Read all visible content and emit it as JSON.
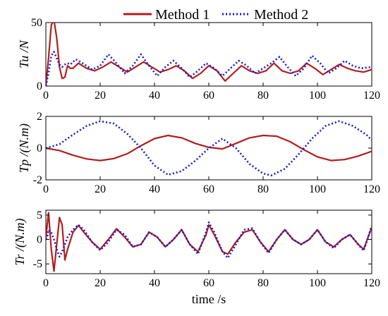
{
  "legend": {
    "entries": [
      "Method 1",
      "Method 2"
    ],
    "colors": [
      "#b01e1e",
      "#1a1ad6"
    ],
    "styles": [
      "solid",
      "dotted"
    ],
    "placement": "top-center"
  },
  "chart_data": [
    {
      "type": "line",
      "ylabel": "Tu /N",
      "xlabel": "",
      "xlim": [
        0,
        120
      ],
      "ylim": [
        0,
        50
      ],
      "xticks": [
        0,
        20,
        40,
        60,
        80,
        100,
        120
      ],
      "yticks": [
        0,
        50
      ],
      "grid": false,
      "series": [
        {
          "name": "Method 1",
          "points": [
            [
              0,
              0
            ],
            [
              1,
              22
            ],
            [
              2,
              48
            ],
            [
              3,
              52
            ],
            [
              4,
              38
            ],
            [
              5,
              15
            ],
            [
              6,
              6
            ],
            [
              7,
              7
            ],
            [
              8,
              16
            ],
            [
              9,
              14
            ],
            [
              10,
              14
            ],
            [
              12,
              18
            ],
            [
              15,
              14
            ],
            [
              18,
              12
            ],
            [
              21,
              15
            ],
            [
              24,
              19
            ],
            [
              27,
              15
            ],
            [
              30,
              11
            ],
            [
              33,
              15
            ],
            [
              36,
              19
            ],
            [
              39,
              15
            ],
            [
              42,
              11
            ],
            [
              45,
              13
            ],
            [
              48,
              16
            ],
            [
              51,
              12
            ],
            [
              54,
              6
            ],
            [
              57,
              10
            ],
            [
              60,
              16
            ],
            [
              63,
              12
            ],
            [
              66,
              4
            ],
            [
              69,
              10
            ],
            [
              72,
              16
            ],
            [
              75,
              12
            ],
            [
              78,
              10
            ],
            [
              81,
              12
            ],
            [
              84,
              18
            ],
            [
              87,
              12
            ],
            [
              90,
              10
            ],
            [
              93,
              12
            ],
            [
              96,
              18
            ],
            [
              99,
              14
            ],
            [
              102,
              9
            ],
            [
              105,
              13
            ],
            [
              108,
              17
            ],
            [
              111,
              14
            ],
            [
              114,
              12
            ],
            [
              117,
              11
            ],
            [
              120,
              13
            ]
          ]
        },
        {
          "name": "Method 2",
          "points": [
            [
              0,
              0
            ],
            [
              1,
              10
            ],
            [
              2,
              24
            ],
            [
              3,
              27
            ],
            [
              4,
              22
            ],
            [
              5,
              17
            ],
            [
              6,
              15
            ],
            [
              7,
              17
            ],
            [
              8,
              18
            ],
            [
              9,
              17
            ],
            [
              10,
              19
            ],
            [
              11,
              21
            ],
            [
              12,
              20
            ],
            [
              15,
              16
            ],
            [
              17,
              13
            ],
            [
              20,
              16
            ],
            [
              23,
              25
            ],
            [
              26,
              18
            ],
            [
              29,
              10
            ],
            [
              32,
              16
            ],
            [
              35,
              25
            ],
            [
              38,
              16
            ],
            [
              41,
              8
            ],
            [
              44,
              15
            ],
            [
              47,
              20
            ],
            [
              50,
              14
            ],
            [
              53,
              7
            ],
            [
              56,
              12
            ],
            [
              59,
              18
            ],
            [
              62,
              14
            ],
            [
              65,
              8
            ],
            [
              68,
              14
            ],
            [
              71,
              20
            ],
            [
              74,
              16
            ],
            [
              77,
              10
            ],
            [
              80,
              14
            ],
            [
              83,
              18
            ],
            [
              86,
              23
            ],
            [
              89,
              15
            ],
            [
              92,
              8
            ],
            [
              95,
              14
            ],
            [
              98,
              24
            ],
            [
              101,
              18
            ],
            [
              104,
              10
            ],
            [
              107,
              14
            ],
            [
              110,
              20
            ],
            [
              113,
              16
            ],
            [
              116,
              14
            ],
            [
              120,
              15
            ]
          ]
        }
      ]
    },
    {
      "type": "line",
      "ylabel": "Tp /(N.m)",
      "xlabel": "",
      "xlim": [
        0,
        120
      ],
      "ylim": [
        -2,
        2
      ],
      "xticks": [
        0,
        20,
        40,
        60,
        80,
        100,
        120
      ],
      "yticks": [
        -2,
        0,
        2
      ],
      "grid": false,
      "series": [
        {
          "name": "Method 1",
          "points": [
            [
              0,
              0
            ],
            [
              5,
              -0.15
            ],
            [
              10,
              -0.45
            ],
            [
              15,
              -0.68
            ],
            [
              20,
              -0.78
            ],
            [
              25,
              -0.66
            ],
            [
              30,
              -0.35
            ],
            [
              35,
              0.15
            ],
            [
              40,
              0.6
            ],
            [
              45,
              0.8
            ],
            [
              50,
              0.65
            ],
            [
              55,
              0.3
            ],
            [
              60,
              0.05
            ],
            [
              65,
              -0.05
            ],
            [
              70,
              0.3
            ],
            [
              75,
              0.65
            ],
            [
              80,
              0.8
            ],
            [
              85,
              0.75
            ],
            [
              90,
              0.4
            ],
            [
              95,
              -0.1
            ],
            [
              100,
              -0.55
            ],
            [
              105,
              -0.78
            ],
            [
              110,
              -0.72
            ],
            [
              115,
              -0.5
            ],
            [
              120,
              -0.2
            ]
          ]
        },
        {
          "name": "Method 2",
          "points": [
            [
              0,
              0
            ],
            [
              5,
              0.25
            ],
            [
              10,
              0.85
            ],
            [
              15,
              1.4
            ],
            [
              20,
              1.7
            ],
            [
              25,
              1.55
            ],
            [
              30,
              0.9
            ],
            [
              35,
              0
            ],
            [
              40,
              -1.1
            ],
            [
              45,
              -1.68
            ],
            [
              50,
              -1.45
            ],
            [
              55,
              -0.8
            ],
            [
              60,
              0
            ],
            [
              65,
              0.6
            ],
            [
              70,
              0
            ],
            [
              75,
              -1.0
            ],
            [
              80,
              -1.6
            ],
            [
              83,
              -1.72
            ],
            [
              88,
              -1.3
            ],
            [
              93,
              -0.4
            ],
            [
              98,
              0.6
            ],
            [
              103,
              1.4
            ],
            [
              108,
              1.7
            ],
            [
              113,
              1.4
            ],
            [
              118,
              0.85
            ],
            [
              120,
              0.5
            ]
          ]
        }
      ]
    },
    {
      "type": "line",
      "ylabel": "Tr /(N.m)",
      "xlabel": "time /s",
      "xlim": [
        0,
        120
      ],
      "ylim": [
        -7,
        6
      ],
      "xticks": [
        0,
        20,
        40,
        60,
        80,
        100,
        120
      ],
      "yticks": [
        -5,
        0,
        5
      ],
      "grid": false,
      "series": [
        {
          "name": "Method 1",
          "points": [
            [
              0,
              0
            ],
            [
              0.5,
              3
            ],
            [
              1,
              5.5
            ],
            [
              2,
              -2
            ],
            [
              3,
              -6.5
            ],
            [
              4,
              -1
            ],
            [
              5,
              4.5
            ],
            [
              6,
              3
            ],
            [
              7,
              -4.2
            ],
            [
              8,
              -2
            ],
            [
              10,
              1.5
            ],
            [
              12,
              2.9
            ],
            [
              14,
              1.5
            ],
            [
              17,
              -0.5
            ],
            [
              20,
              -2
            ],
            [
              23,
              0
            ],
            [
              26,
              2.2
            ],
            [
              29,
              0.5
            ],
            [
              32,
              -1.5
            ],
            [
              35,
              -1
            ],
            [
              38,
              1.5
            ],
            [
              41,
              0.5
            ],
            [
              44,
              -1.5
            ],
            [
              47,
              0
            ],
            [
              50,
              2
            ],
            [
              53,
              -1
            ],
            [
              56,
              -2.5
            ],
            [
              59,
              1
            ],
            [
              60,
              3
            ],
            [
              62,
              1
            ],
            [
              65,
              -2.5
            ],
            [
              67,
              -3
            ],
            [
              70,
              -0.5
            ],
            [
              73,
              1.5
            ],
            [
              76,
              2
            ],
            [
              79,
              -0.5
            ],
            [
              82,
              -2.5
            ],
            [
              85,
              0
            ],
            [
              88,
              2
            ],
            [
              91,
              0
            ],
            [
              94,
              -1
            ],
            [
              97,
              0
            ],
            [
              100,
              2
            ],
            [
              103,
              -0.5
            ],
            [
              106,
              -1.5
            ],
            [
              109,
              0
            ],
            [
              112,
              1
            ],
            [
              115,
              -1
            ],
            [
              117,
              -2
            ],
            [
              120,
              2.5
            ]
          ]
        },
        {
          "name": "Method 2",
          "points": [
            [
              0,
              0
            ],
            [
              0.5,
              0.5
            ],
            [
              1,
              2
            ],
            [
              2,
              1.5
            ],
            [
              3,
              0
            ],
            [
              4,
              -2
            ],
            [
              5,
              -3.5
            ],
            [
              6,
              -2.5
            ],
            [
              7,
              -1
            ],
            [
              8,
              0.5
            ],
            [
              10,
              2
            ],
            [
              12,
              3
            ],
            [
              14,
              2
            ],
            [
              17,
              -0.5
            ],
            [
              20,
              -2.2
            ],
            [
              23,
              -0.5
            ],
            [
              26,
              2
            ],
            [
              29,
              1
            ],
            [
              32,
              -1.5
            ],
            [
              35,
              -1
            ],
            [
              38,
              1.5
            ],
            [
              41,
              0.5
            ],
            [
              44,
              -1.5
            ],
            [
              47,
              0
            ],
            [
              50,
              2
            ],
            [
              53,
              -1
            ],
            [
              56,
              -3
            ],
            [
              59,
              1.5
            ],
            [
              60,
              3.5
            ],
            [
              62,
              1.5
            ],
            [
              65,
              -2.5
            ],
            [
              67,
              -3.8
            ],
            [
              70,
              -1
            ],
            [
              73,
              2
            ],
            [
              76,
              2.3
            ],
            [
              79,
              -0.5
            ],
            [
              82,
              -2.8
            ],
            [
              85,
              0
            ],
            [
              88,
              2
            ],
            [
              91,
              0
            ],
            [
              94,
              -1
            ],
            [
              97,
              0
            ],
            [
              100,
              2
            ],
            [
              103,
              -0.5
            ],
            [
              106,
              -1.8
            ],
            [
              109,
              0
            ],
            [
              112,
              1
            ],
            [
              115,
              -1
            ],
            [
              117,
              -2.3
            ],
            [
              120,
              2.8
            ]
          ]
        }
      ]
    }
  ]
}
